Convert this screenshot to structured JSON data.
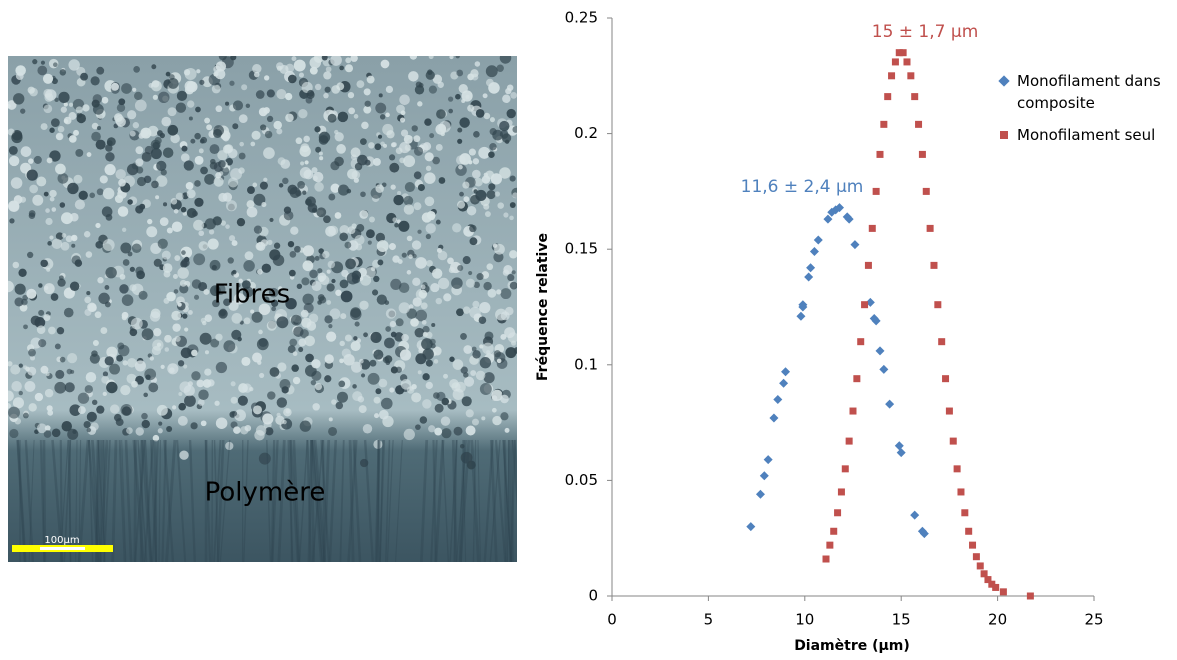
{
  "micrograph": {
    "labels": [
      "Fibres",
      "Polymère"
    ],
    "scale_bar": "100µm"
  },
  "chart_data": {
    "type": "scatter",
    "y_label": "Fréquence relative",
    "x_label": "Diamètre (µm)",
    "annotations": [
      "15 ± 1,7 µm",
      "11,6 ± 2,4 µm"
    ],
    "xlim": [
      0,
      25
    ],
    "xticks": [
      0,
      5,
      10,
      15,
      20,
      25
    ],
    "ylim": [
      0,
      0.25
    ],
    "yticks": [
      0,
      0.05,
      0.1,
      0.15,
      0.2,
      0.25
    ],
    "grid": false,
    "legend": "right",
    "series": [
      {
        "name": "Monofilament dans composite",
        "color": "#4f81bd",
        "marker": "diamond",
        "x": [
          7.2,
          7.7,
          7.9,
          8.1,
          8.4,
          8.6,
          8.9,
          9.0,
          9.8,
          9.9,
          9.9,
          10.2,
          10.3,
          10.5,
          10.7,
          11.2,
          11.4,
          11.6,
          11.8,
          12.2,
          12.3,
          12.6,
          13.4,
          13.6,
          13.7,
          13.9,
          14.1,
          14.4,
          14.9,
          15.0,
          15.7,
          16.1,
          16.2
        ],
        "values": [
          0.03,
          0.044,
          0.052,
          0.059,
          0.077,
          0.085,
          0.092,
          0.097,
          0.121,
          0.125,
          0.126,
          0.138,
          0.142,
          0.149,
          0.154,
          0.163,
          0.166,
          0.167,
          0.168,
          0.164,
          0.163,
          0.152,
          0.127,
          0.12,
          0.119,
          0.106,
          0.098,
          0.083,
          0.065,
          0.062,
          0.035,
          0.028,
          0.027
        ]
      },
      {
        "name": "Monofilament seul",
        "color": "#c0504d",
        "marker": "square",
        "x": [
          11.1,
          11.3,
          11.5,
          11.7,
          11.9,
          12.1,
          12.3,
          12.5,
          12.7,
          12.9,
          13.1,
          13.3,
          13.5,
          13.7,
          13.9,
          14.1,
          14.3,
          14.5,
          14.7,
          14.9,
          15.1,
          15.3,
          15.5,
          15.7,
          15.9,
          16.1,
          16.3,
          16.5,
          16.7,
          16.9,
          17.1,
          17.3,
          17.5,
          17.7,
          17.9,
          18.1,
          18.3,
          18.5,
          18.7,
          18.9,
          19.1,
          19.3,
          19.5,
          19.7,
          19.9,
          20.3,
          21.7
        ],
        "values": [
          0.016,
          0.022,
          0.028,
          0.036,
          0.045,
          0.055,
          0.067,
          0.08,
          0.094,
          0.11,
          0.126,
          0.143,
          0.159,
          0.175,
          0.191,
          0.204,
          0.216,
          0.225,
          0.231,
          0.235,
          0.235,
          0.231,
          0.225,
          0.216,
          0.204,
          0.191,
          0.175,
          0.159,
          0.143,
          0.126,
          0.11,
          0.094,
          0.08,
          0.067,
          0.055,
          0.045,
          0.036,
          0.028,
          0.022,
          0.017,
          0.013,
          0.0096,
          0.0071,
          0.0051,
          0.0037,
          0.0018,
          0
        ]
      }
    ]
  }
}
